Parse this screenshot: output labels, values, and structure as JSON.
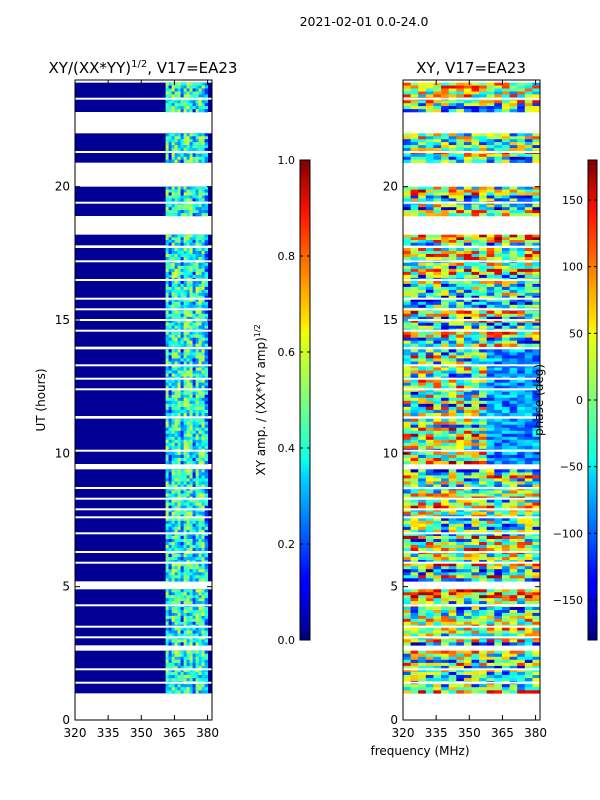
{
  "suptitle": "2021-02-01 0.0-24.0",
  "chart_data": [
    {
      "type": "heatmap",
      "title_prefix": "XY/(XX*YY)",
      "title_sup": "1/2",
      "title_suffix": ", V17=EA23",
      "xlabel": "",
      "ylabel": "UT (hours)",
      "xlim": [
        320,
        382
      ],
      "ylim": [
        0,
        24
      ],
      "xticks": [
        "320",
        "335",
        "350",
        "365",
        "380"
      ],
      "yticks": [
        "0",
        "5",
        "10",
        "15",
        "20"
      ],
      "colorbar": {
        "label_main": "XY amp. / (XX*YY amp)",
        "label_sup": "1/2",
        "range": [
          0.0,
          1.0
        ],
        "ticks": [
          "0.0",
          "0.2",
          "0.4",
          "0.6",
          "0.8",
          "1.0"
        ],
        "colormap": "jet"
      },
      "data_hours": [
        [
          1.0,
          2.6
        ],
        [
          2.8,
          4.9
        ],
        [
          5.2,
          9.4
        ],
        [
          9.6,
          11.3
        ],
        [
          11.4,
          13.9
        ],
        [
          14.0,
          17.7
        ],
        [
          17.8,
          18.2
        ],
        [
          18.9,
          20.0
        ],
        [
          20.9,
          22.0
        ],
        [
          22.8,
          23.9
        ]
      ],
      "gap_hours": [
        1.4,
        1.9,
        3.1,
        3.5,
        4.3,
        5.9,
        6.3,
        7.0,
        7.6,
        7.9,
        8.3,
        8.7,
        10.1,
        12.4,
        12.8,
        13.3,
        14.6,
        15.0,
        15.4,
        15.8,
        16.5,
        17.2,
        19.4,
        21.3,
        23.3
      ],
      "background_value": 0.02,
      "signal_band_mhz": [
        361,
        380
      ],
      "signal_value_range": [
        0.25,
        0.6
      ]
    },
    {
      "type": "heatmap",
      "title": "XY, V17=EA23",
      "xlabel": "frequency (MHz)",
      "ylabel": "",
      "xlim": [
        320,
        382
      ],
      "ylim": [
        0,
        24
      ],
      "xticks": [
        "320",
        "335",
        "350",
        "365",
        "380"
      ],
      "yticks": [
        "0",
        "5",
        "10",
        "15",
        "20"
      ],
      "colorbar": {
        "label": "phase (deg)",
        "range": [
          -180,
          180
        ],
        "ticks": [
          "−150",
          "−100",
          "−50",
          "0",
          "50",
          "100",
          "150"
        ],
        "colormap": "jet"
      },
      "data_hours": [
        [
          1.0,
          2.6
        ],
        [
          2.8,
          4.9
        ],
        [
          5.2,
          9.4
        ],
        [
          9.6,
          11.3
        ],
        [
          11.4,
          13.9
        ],
        [
          14.0,
          17.7
        ],
        [
          17.8,
          18.2
        ],
        [
          18.9,
          20.0
        ],
        [
          20.9,
          22.0
        ],
        [
          22.8,
          23.9
        ]
      ],
      "gap_hours": [
        1.4,
        1.9,
        3.1,
        3.5,
        4.3,
        5.9,
        6.3,
        7.0,
        7.6,
        7.9,
        8.3,
        8.7,
        10.1,
        12.4,
        12.8,
        13.3,
        14.6,
        15.0,
        15.4,
        15.8,
        16.5,
        17.2,
        19.4,
        21.3,
        23.3
      ],
      "value_range_deg": [
        -180,
        180
      ]
    }
  ]
}
